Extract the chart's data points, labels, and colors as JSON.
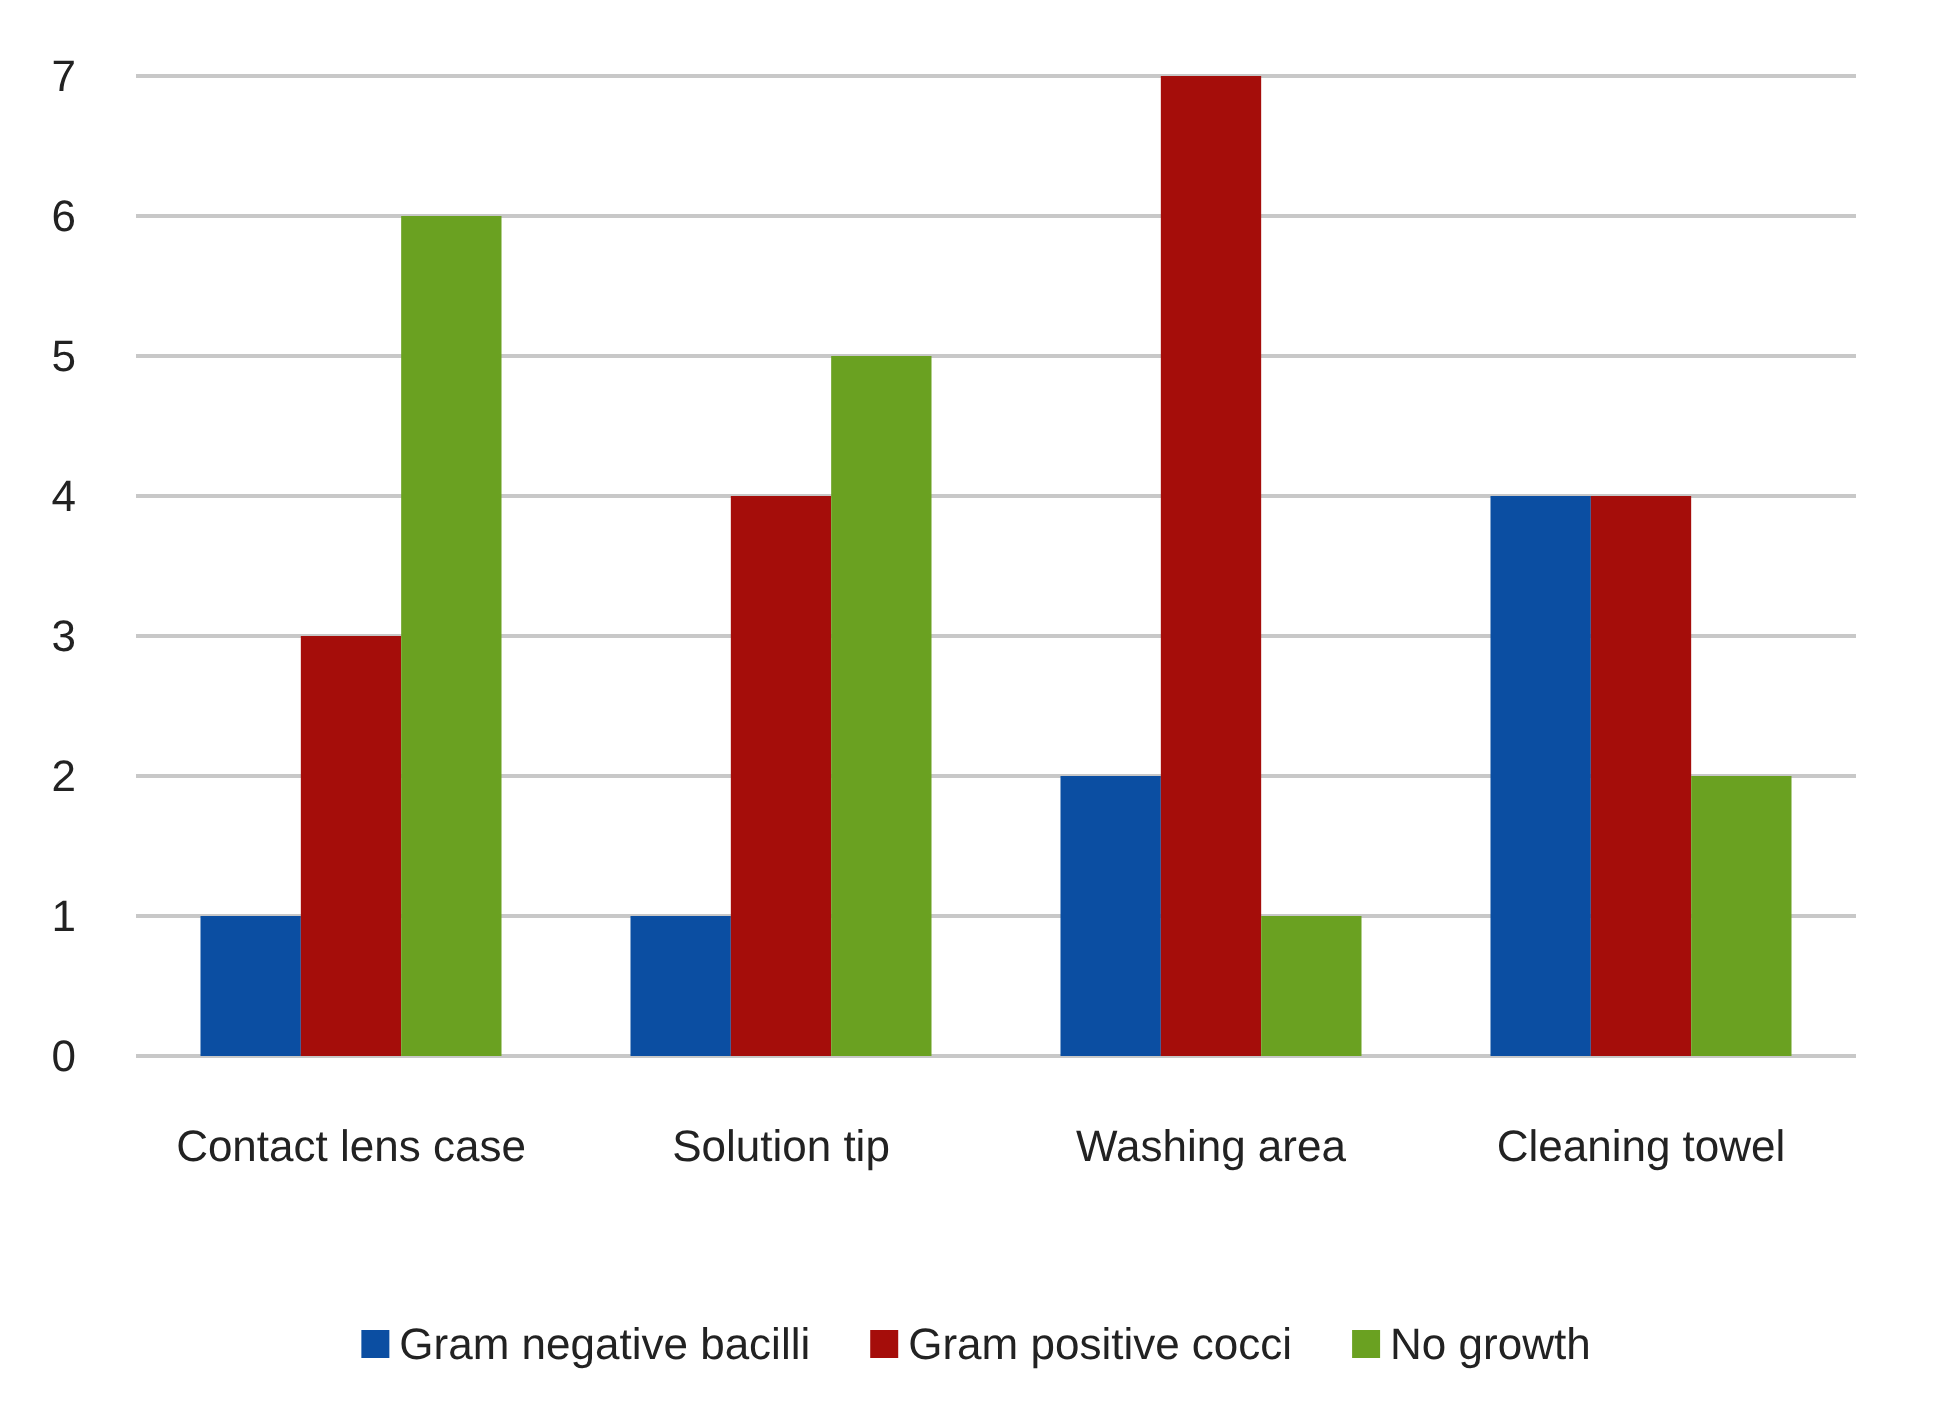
{
  "chart_data": {
    "type": "bar",
    "categories": [
      "Contact lens case",
      "Solution tip",
      "Washing area",
      "Cleaning towel"
    ],
    "series": [
      {
        "name": "Gram negative bacilli",
        "color": "#0b4ea2",
        "values": [
          1,
          1,
          2,
          4
        ]
      },
      {
        "name": "Gram positive cocci",
        "color": "#a50d0a",
        "values": [
          3,
          4,
          7,
          4
        ]
      },
      {
        "name": "No growth",
        "color": "#6aa121",
        "values": [
          6,
          5,
          1,
          2
        ]
      }
    ],
    "ylim": [
      0,
      7
    ],
    "yticks": [
      0,
      1,
      2,
      3,
      4,
      5,
      6,
      7
    ],
    "grid": "y",
    "legend": "bottom"
  }
}
